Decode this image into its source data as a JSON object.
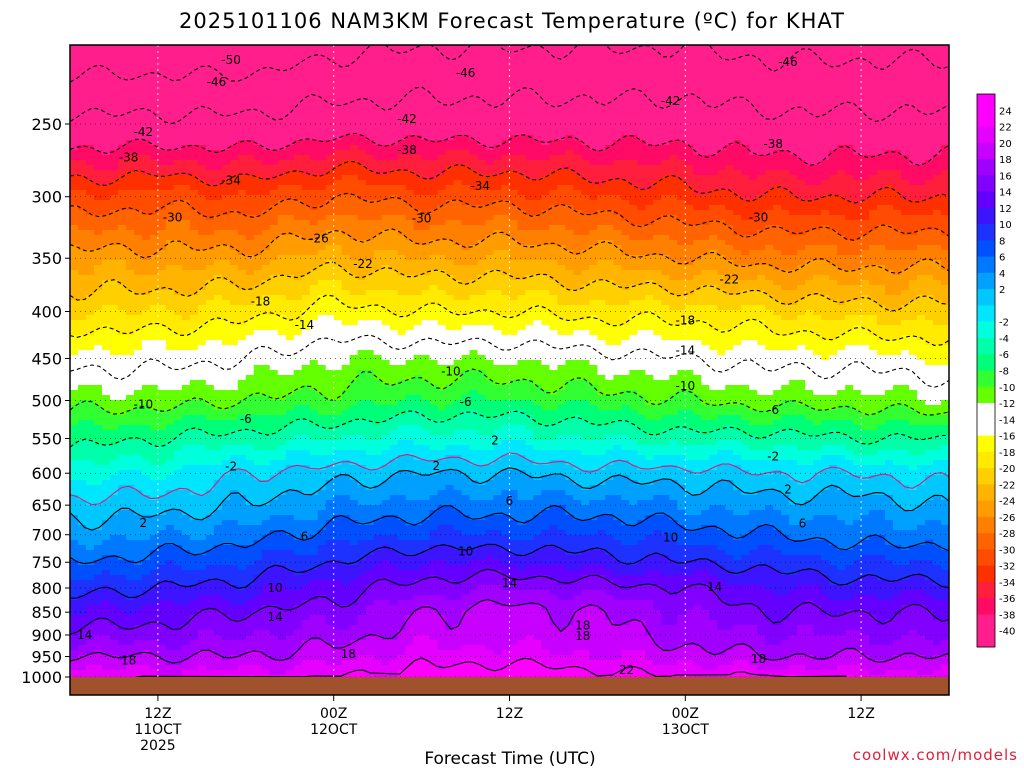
{
  "chart_data": {
    "type": "heatmap",
    "title": "2025101106 NAM3KM Forecast Temperature (ºC) for KHAT",
    "xlabel": "Forecast Time (UTC)",
    "ylabel": "",
    "credit": "coolwx.com/models",
    "y_axis": {
      "scale": "log-pressure",
      "direction": "decreasing-upward",
      "range_hpa": [
        1000,
        200
      ],
      "ticks": [
        250,
        300,
        350,
        400,
        450,
        500,
        550,
        600,
        650,
        700,
        750,
        800,
        850,
        900,
        950,
        1000
      ],
      "tick_labels": [
        "250",
        "300",
        "350",
        "400",
        "450",
        "500",
        "550",
        "600",
        "650",
        "700",
        "750",
        "800",
        "850",
        "900",
        "950",
        "1000"
      ]
    },
    "x_axis": {
      "range_hours": [
        0,
        60
      ],
      "ticks_hours": [
        6,
        18,
        30,
        42,
        54
      ],
      "tick_labels": [
        [
          "12Z",
          "11OCT",
          "2025"
        ],
        [
          "00Z",
          "12OCT"
        ],
        [
          "12Z"
        ],
        [
          "00Z",
          "13OCT"
        ],
        [
          "12Z"
        ]
      ]
    },
    "grid": true,
    "legend_position": "right",
    "colorbar": {
      "min": -42,
      "max": 26,
      "step": 2,
      "labels": [
        24,
        22,
        20,
        18,
        16,
        14,
        12,
        10,
        8,
        6,
        4,
        2,
        -2,
        -4,
        -6,
        -8,
        -10,
        -12,
        -14,
        -16,
        -18,
        -20,
        -22,
        -24,
        -26,
        -28,
        -30,
        -32,
        -34,
        -36,
        -38,
        -40
      ],
      "colors": [
        "#ff00ff",
        "#ff00ff",
        "#e600ff",
        "#c800ff",
        "#a000ff",
        "#8200ff",
        "#6400ff",
        "#3c14ff",
        "#1e32ff",
        "#0050ff",
        "#0078ff",
        "#00a0ff",
        "#00c8ff",
        "#00e6ff",
        "#00ffdc",
        "#00ffaa",
        "#00ff78",
        "#32ff32",
        "#64ff00",
        "#ffffff",
        "#ffffff",
        "#ffff00",
        "#ffea00",
        "#ffd000",
        "#ffb400",
        "#ff9c00",
        "#ff8000",
        "#ff6400",
        "#ff4c00",
        "#ff3000",
        "#ff1e3c",
        "#ff0a64",
        "#ff1e8c",
        "#ff1e8c"
      ]
    },
    "temperature_profile": {
      "levels_hpa": [
        1000,
        950,
        900,
        850,
        800,
        750,
        700,
        650,
        600,
        550,
        500,
        450,
        400,
        350,
        300,
        250,
        200
      ],
      "hours": [
        0,
        6,
        12,
        18,
        24,
        30,
        36,
        42,
        48,
        54,
        60
      ],
      "values_c": [
        [
          22,
          21,
          21,
          22,
          23,
          24,
          23,
          22,
          22,
          21,
          21
        ],
        [
          18,
          18,
          18,
          19,
          21,
          21,
          20,
          19,
          18,
          18,
          18
        ],
        [
          15,
          15,
          16,
          17,
          19,
          19,
          19,
          17,
          16,
          16,
          15
        ],
        [
          12,
          13,
          14,
          15,
          18,
          19,
          18,
          16,
          14,
          14,
          14
        ],
        [
          9,
          10,
          11,
          13,
          15,
          16,
          15,
          14,
          12,
          11,
          11
        ],
        [
          6,
          7,
          8,
          10,
          12,
          12,
          11,
          10,
          9,
          8,
          8
        ],
        [
          3,
          4,
          5,
          7,
          8,
          8,
          8,
          7,
          6,
          5,
          5
        ],
        [
          1,
          1,
          2,
          4,
          5,
          5,
          5,
          4,
          3,
          3,
          2
        ],
        [
          -3,
          -2,
          0,
          1,
          2,
          2,
          1,
          1,
          0,
          0,
          -1
        ],
        [
          -7,
          -6,
          -5,
          -4,
          -3,
          -3,
          -4,
          -5,
          -5,
          -6,
          -6
        ],
        [
          -11,
          -11,
          -10,
          -9,
          -8,
          -8,
          -9,
          -10,
          -11,
          -11,
          -12
        ],
        [
          -15,
          -15,
          -14,
          -12,
          -12,
          -12,
          -13,
          -14,
          -15,
          -15,
          -16
        ],
        [
          -20,
          -20,
          -19,
          -17,
          -18,
          -18,
          -19,
          -19,
          -20,
          -21,
          -21
        ],
        [
          -25,
          -25,
          -25,
          -23,
          -24,
          -24,
          -25,
          -26,
          -27,
          -27,
          -27
        ],
        [
          -32,
          -31,
          -32,
          -30,
          -31,
          -31,
          -32,
          -33,
          -34,
          -34,
          -34
        ],
        [
          -41,
          -41,
          -41,
          -40,
          -40,
          -40,
          -40,
          -40,
          -41,
          -41,
          -41
        ],
        [
          -50,
          -50,
          -50,
          -48,
          -47,
          -47,
          -47,
          -47,
          -48,
          -48,
          -48
        ]
      ]
    },
    "contours": {
      "interval_c": 4,
      "zero_isotherm_color": "#e0187a",
      "positive_style": "solid",
      "negative_style": "dashed"
    },
    "contour_labels": [
      {
        "text": "-50",
        "hour": 11,
        "p": 213
      },
      {
        "text": "-46",
        "hour": 10,
        "p": 225
      },
      {
        "text": "-46",
        "hour": 27,
        "p": 220
      },
      {
        "text": "-46",
        "hour": 49,
        "p": 214
      },
      {
        "text": "-42",
        "hour": 5,
        "p": 255
      },
      {
        "text": "-42",
        "hour": 23,
        "p": 247
      },
      {
        "text": "-42",
        "hour": 41,
        "p": 236
      },
      {
        "text": "-38",
        "hour": 4,
        "p": 272
      },
      {
        "text": "-38",
        "hour": 23,
        "p": 267
      },
      {
        "text": "-38",
        "hour": 48,
        "p": 263
      },
      {
        "text": "-34",
        "hour": 11,
        "p": 288
      },
      {
        "text": "-34",
        "hour": 28,
        "p": 292
      },
      {
        "text": "-30",
        "hour": 7,
        "p": 316
      },
      {
        "text": "-30",
        "hour": 24,
        "p": 317
      },
      {
        "text": "-30",
        "hour": 47,
        "p": 316
      },
      {
        "text": "-26",
        "hour": 17,
        "p": 333
      },
      {
        "text": "-22",
        "hour": 20,
        "p": 355
      },
      {
        "text": "-22",
        "hour": 45,
        "p": 369
      },
      {
        "text": "-18",
        "hour": 13,
        "p": 390
      },
      {
        "text": "-18",
        "hour": 42,
        "p": 409
      },
      {
        "text": "-14",
        "hour": 16,
        "p": 414
      },
      {
        "text": "-14",
        "hour": 42,
        "p": 441
      },
      {
        "text": "-10",
        "hour": 5,
        "p": 505
      },
      {
        "text": "-10",
        "hour": 26,
        "p": 465
      },
      {
        "text": "-10",
        "hour": 42,
        "p": 482
      },
      {
        "text": "-6",
        "hour": 12,
        "p": 524
      },
      {
        "text": "-6",
        "hour": 27,
        "p": 502
      },
      {
        "text": "-6",
        "hour": 48,
        "p": 512
      },
      {
        "text": "-2",
        "hour": 11,
        "p": 590
      },
      {
        "text": "-2",
        "hour": 48,
        "p": 575
      },
      {
        "text": "2",
        "hour": 5,
        "p": 680
      },
      {
        "text": "2",
        "hour": 25,
        "p": 589
      },
      {
        "text": "2",
        "hour": 29,
        "p": 553
      },
      {
        "text": "2",
        "hour": 49,
        "p": 625
      },
      {
        "text": "6",
        "hour": 16,
        "p": 703
      },
      {
        "text": "6",
        "hour": 30,
        "p": 643
      },
      {
        "text": "6",
        "hour": 50,
        "p": 681
      },
      {
        "text": "10",
        "hour": 14,
        "p": 800
      },
      {
        "text": "10",
        "hour": 27,
        "p": 730
      },
      {
        "text": "10",
        "hour": 41,
        "p": 705
      },
      {
        "text": "14",
        "hour": 1,
        "p": 900
      },
      {
        "text": "14",
        "hour": 14,
        "p": 860
      },
      {
        "text": "14",
        "hour": 30,
        "p": 790
      },
      {
        "text": "14",
        "hour": 44,
        "p": 798
      },
      {
        "text": "18",
        "hour": 4,
        "p": 960
      },
      {
        "text": "18",
        "hour": 19,
        "p": 944
      },
      {
        "text": "18",
        "hour": 35,
        "p": 879
      },
      {
        "text": "18",
        "hour": 35,
        "p": 902
      },
      {
        "text": "18",
        "hour": 47,
        "p": 956
      },
      {
        "text": "22",
        "hour": 38,
        "p": 982
      }
    ]
  }
}
